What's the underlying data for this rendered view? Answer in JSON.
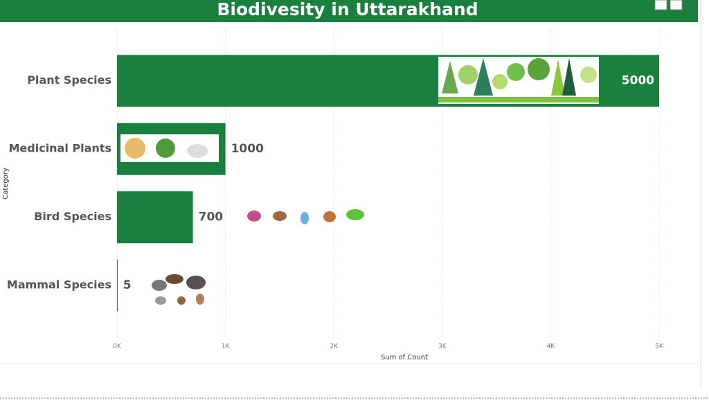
{
  "chart_data": {
    "type": "bar",
    "orientation": "horizontal",
    "title": "Biodivesity in Uttarakhand",
    "categories": [
      "Plant Species",
      "Medicinal Plants",
      "Bird Species",
      "Mammal Species"
    ],
    "values": [
      5000,
      1000,
      700,
      5
    ],
    "color": "#1a8040",
    "xlim": [
      0,
      5000
    ],
    "xticks": [
      {
        "value": 0,
        "label": "0K"
      },
      {
        "value": 1000,
        "label": "1K"
      },
      {
        "value": 2000,
        "label": "2K"
      },
      {
        "value": 3000,
        "label": "3K"
      },
      {
        "value": 4000,
        "label": "4K"
      },
      {
        "value": 5000,
        "label": "5K"
      }
    ],
    "xlabel": "Sum of Count",
    "ylabel": "Category",
    "grid": true
  }
}
